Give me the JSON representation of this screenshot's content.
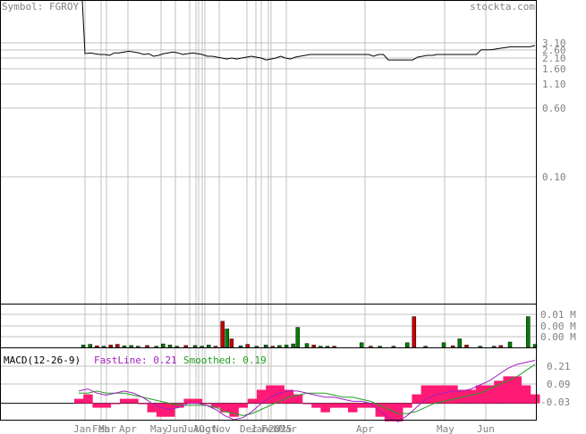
{
  "header": {
    "symbol": "Symbol: FGROY",
    "source": "stockta.com"
  },
  "colors": {
    "grid": "#c0c0c0",
    "frame": "#000000",
    "text_gray": "#808080",
    "price_line": "#000000",
    "vol_up": "#008000",
    "vol_down": "#cc0000",
    "hist": "#ff1a75",
    "fast_line": "#a020c0",
    "smoothed_line": "#20a020"
  },
  "chart_data": [
    {
      "type": "line",
      "name": "price",
      "scale": "log",
      "y_ticks": [
        "3.10",
        "2.60",
        "2.10",
        "1.60",
        "1.10",
        "0.60",
        "0.10"
      ],
      "x_ticks": [
        "Jan",
        "Feb",
        "Mar",
        "Apr",
        "May",
        "Jun",
        "Jul",
        "Aug",
        "Oct",
        "Nov",
        "Dec",
        "Jan",
        "Feb",
        "2025",
        "Mar",
        "Apr",
        "May",
        "Jun"
      ],
      "values": [
        30.0,
        2.35,
        2.4,
        2.35,
        2.3,
        2.3,
        2.25,
        2.4,
        2.4,
        2.45,
        2.5,
        2.45,
        2.4,
        2.3,
        2.35,
        2.2,
        2.25,
        2.35,
        2.4,
        2.45,
        2.4,
        2.3,
        2.35,
        2.4,
        2.35,
        2.3,
        2.2,
        2.2,
        2.15,
        2.1,
        2.05,
        2.1,
        2.05,
        2.1,
        2.15,
        2.2,
        2.15,
        2.1,
        2.0,
        2.05,
        2.1,
        2.2,
        2.1,
        2.05,
        2.15,
        2.2,
        2.25,
        2.3,
        2.3,
        2.3,
        2.3,
        2.3,
        2.3,
        2.3,
        2.3,
        2.3,
        2.3,
        2.3,
        2.3,
        2.3,
        2.2,
        2.3,
        2.3,
        2.0,
        2.0,
        2.0,
        2.0,
        2.0,
        2.0,
        2.15,
        2.2,
        2.25,
        2.25,
        2.3,
        2.3,
        2.3,
        2.3,
        2.3,
        2.3,
        2.3,
        2.3,
        2.3,
        2.6,
        2.6,
        2.6,
        2.65,
        2.7,
        2.75,
        2.8,
        2.8,
        2.8,
        2.8,
        2.8,
        2.9
      ]
    },
    {
      "type": "bar",
      "name": "volume",
      "y_ticks": [
        "0.01 M",
        "0.00 M",
        "0.00 M"
      ],
      "bars": [
        [
          0.01,
          0.06,
          "up"
        ],
        [
          0.025,
          0.08,
          "up"
        ],
        [
          0.04,
          0.04,
          "down"
        ],
        [
          0.055,
          0.03,
          "up"
        ],
        [
          0.07,
          0.06,
          "down"
        ],
        [
          0.085,
          0.08,
          "down"
        ],
        [
          0.1,
          0.04,
          "up"
        ],
        [
          0.115,
          0.05,
          "up"
        ],
        [
          0.13,
          0.03,
          "up"
        ],
        [
          0.15,
          0.05,
          "down"
        ],
        [
          0.17,
          0.03,
          "up"
        ],
        [
          0.185,
          0.09,
          "up"
        ],
        [
          0.2,
          0.06,
          "up"
        ],
        [
          0.215,
          0.03,
          "up"
        ],
        [
          0.235,
          0.05,
          "down"
        ],
        [
          0.255,
          0.05,
          "up"
        ],
        [
          0.27,
          0.03,
          "up"
        ],
        [
          0.285,
          0.06,
          "up"
        ],
        [
          0.3,
          0.03,
          "down"
        ],
        [
          0.315,
          0.68,
          "down"
        ],
        [
          0.325,
          0.48,
          "up"
        ],
        [
          0.335,
          0.22,
          "down"
        ],
        [
          0.355,
          0.04,
          "up"
        ],
        [
          0.37,
          0.08,
          "down"
        ],
        [
          0.39,
          0.03,
          "up"
        ],
        [
          0.41,
          0.06,
          "up"
        ],
        [
          0.425,
          0.03,
          "down"
        ],
        [
          0.44,
          0.05,
          "up"
        ],
        [
          0.455,
          0.06,
          "up"
        ],
        [
          0.47,
          0.09,
          "up"
        ],
        [
          0.48,
          0.52,
          "up"
        ],
        [
          0.5,
          0.1,
          "up"
        ],
        [
          0.515,
          0.06,
          "down"
        ],
        [
          0.53,
          0.03,
          "up"
        ],
        [
          0.545,
          0.03,
          "up"
        ],
        [
          0.56,
          0.03,
          "down"
        ],
        [
          0.62,
          0.12,
          "up"
        ],
        [
          0.64,
          0.03,
          "down"
        ],
        [
          0.66,
          0.03,
          "up"
        ],
        [
          0.69,
          0.03,
          "up"
        ],
        [
          0.72,
          0.12,
          "up"
        ],
        [
          0.735,
          0.8,
          "down"
        ],
        [
          0.76,
          0.03,
          "up"
        ],
        [
          0.8,
          0.12,
          "up"
        ],
        [
          0.82,
          0.04,
          "down"
        ],
        [
          0.835,
          0.22,
          "up"
        ],
        [
          0.85,
          0.06,
          "down"
        ],
        [
          0.88,
          0.03,
          "up"
        ],
        [
          0.91,
          0.03,
          "up"
        ],
        [
          0.925,
          0.05,
          "down"
        ],
        [
          0.945,
          0.14,
          "up"
        ],
        [
          0.985,
          0.8,
          "up"
        ],
        [
          1.0,
          0.08,
          "up"
        ]
      ]
    },
    {
      "type": "line",
      "name": "macd",
      "title": "MACD(12-26-9)",
      "fast_label": "FastLine: 0.21",
      "smooth_label": "Smoothed: 0.19",
      "y_ticks": [
        "0.21",
        "0.09",
        "-0.03"
      ],
      "ylim": [
        -0.08,
        0.26
      ],
      "fast": [
        0.06,
        0.07,
        0.05,
        0.04,
        0.05,
        0.06,
        0.05,
        0.03,
        0.0,
        -0.02,
        -0.03,
        -0.02,
        0.0,
        0.0,
        -0.01,
        -0.03,
        -0.06,
        -0.08,
        -0.07,
        -0.04,
        0.0,
        0.03,
        0.05,
        0.06,
        0.06,
        0.05,
        0.04,
        0.03,
        0.03,
        0.02,
        0.01,
        0.01,
        0.0,
        -0.04,
        -0.07,
        -0.09,
        -0.06,
        -0.02,
        0.02,
        0.04,
        0.05,
        0.06,
        0.06,
        0.07,
        0.09,
        0.11,
        0.14,
        0.17,
        0.19,
        0.2,
        0.21
      ],
      "smooth": [
        0.05,
        0.05,
        0.06,
        0.05,
        0.05,
        0.05,
        0.04,
        0.03,
        0.02,
        0.01,
        0.0,
        -0.01,
        -0.01,
        -0.01,
        -0.01,
        -0.02,
        -0.04,
        -0.05,
        -0.06,
        -0.05,
        -0.03,
        -0.01,
        0.01,
        0.03,
        0.04,
        0.05,
        0.05,
        0.05,
        0.04,
        0.03,
        0.03,
        0.02,
        0.01,
        -0.01,
        -0.03,
        -0.05,
        -0.05,
        -0.04,
        -0.02,
        0.0,
        0.01,
        0.02,
        0.03,
        0.04,
        0.05,
        0.07,
        0.09,
        0.11,
        0.13,
        0.16,
        0.19
      ]
    }
  ]
}
